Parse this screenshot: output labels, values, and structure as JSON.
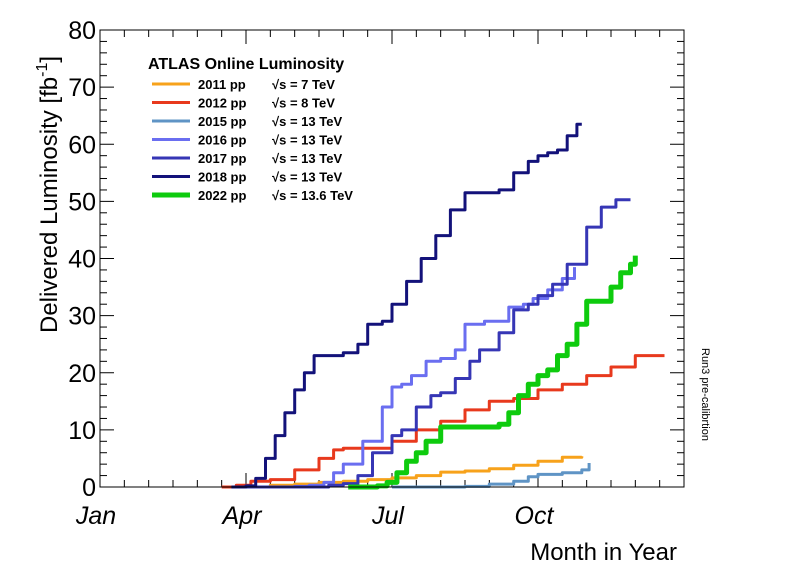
{
  "chart_data": {
    "type": "line",
    "ylabel": "Delivered Luminosity [fb",
    "ylabel_sup": "-1",
    "ylabel_close": "]",
    "xlabel": "Month in Year",
    "xlim": [
      1,
      13
    ],
    "ylim": [
      0,
      80
    ],
    "y_ticks": [
      0,
      10,
      20,
      30,
      40,
      50,
      60,
      70,
      80
    ],
    "x_ticks": [
      {
        "label": "Jan",
        "value": 1
      },
      {
        "label": "Apr",
        "value": 4
      },
      {
        "label": "Jul",
        "value": 7
      },
      {
        "label": "Oct",
        "value": 10
      }
    ],
    "legend_title": "ATLAS Online Luminosity",
    "side_note": "Run3 pre-calibrtion",
    "series": [
      {
        "name": "2011 pp",
        "energy": "√s = 7 TeV",
        "color": "#f7a21b",
        "x": [
          3.75,
          4.5,
          5.0,
          5.5,
          6.0,
          6.5,
          7.0,
          7.5,
          8.0,
          8.5,
          9.0,
          9.5,
          10.0,
          10.5,
          10.9
        ],
        "y": [
          0,
          0.3,
          0.5,
          0.8,
          1.0,
          1.3,
          1.6,
          2.0,
          2.6,
          2.8,
          3.2,
          3.8,
          4.5,
          5.2,
          5.4
        ]
      },
      {
        "name": "2012 pp",
        "energy": "√s = 8 TeV",
        "color": "#e8391d",
        "x": [
          3.5,
          3.8,
          4.1,
          4.5,
          5.0,
          5.5,
          5.8,
          6.0,
          6.5,
          7.0,
          7.5,
          8.0,
          8.5,
          9.0,
          9.5,
          10.0,
          10.5,
          11.0,
          11.5,
          12.0,
          12.6
        ],
        "y": [
          0,
          0.3,
          1.0,
          1.3,
          3.0,
          5.0,
          6.5,
          6.8,
          6.8,
          8.0,
          10.0,
          11.5,
          13.5,
          15.0,
          15.5,
          17.0,
          18.0,
          19.5,
          21.0,
          23.0,
          23.0
        ]
      },
      {
        "name": "2015 pp",
        "energy": "√s = 13 TeV",
        "color": "#5f94c5",
        "x": [
          7.0,
          8.0,
          8.5,
          9.0,
          9.5,
          9.8,
          10.0,
          10.5,
          10.9,
          11.05
        ],
        "y": [
          0,
          0,
          0.1,
          0.5,
          1.0,
          1.8,
          2.2,
          2.5,
          3.0,
          4.2
        ]
      },
      {
        "name": "2016 pp",
        "energy": "√s = 13 TeV",
        "color": "#6a6ef0",
        "x": [
          4.5,
          5.0,
          5.3,
          5.6,
          5.8,
          6.0,
          6.4,
          6.8,
          7.0,
          7.2,
          7.4,
          7.7,
          8.0,
          8.3,
          8.5,
          8.9,
          9.1,
          9.4,
          9.7,
          9.9,
          10.2,
          10.5,
          10.75
        ],
        "y": [
          0,
          0.1,
          0.3,
          0.8,
          2.5,
          4.0,
          8.0,
          14.0,
          17.5,
          18.0,
          19.5,
          22.0,
          22.5,
          24.0,
          28.5,
          29.0,
          29.0,
          31.5,
          32.0,
          33.0,
          34.5,
          36.5,
          38.5
        ]
      },
      {
        "name": "2017 pp",
        "energy": "√s = 13 TeV",
        "color": "#3636b5",
        "x": [
          4.0,
          5.0,
          5.7,
          6.0,
          6.3,
          6.6,
          7.0,
          7.2,
          7.5,
          7.8,
          8.0,
          8.3,
          8.6,
          8.8,
          9.0,
          9.2,
          9.5,
          9.8,
          10.0,
          10.3,
          10.6,
          11.0,
          11.3,
          11.6,
          11.9
        ],
        "y": [
          0,
          0,
          0.3,
          0.6,
          2.0,
          6.0,
          9.0,
          10.0,
          14.0,
          16.0,
          16.5,
          19.0,
          22.0,
          24.0,
          24.0,
          27.0,
          31.0,
          32.0,
          33.5,
          35.5,
          39.0,
          45.5,
          49.0,
          50.3,
          50.3
        ]
      },
      {
        "name": "2018 pp",
        "energy": "√s = 13 TeV",
        "color": "#13127a",
        "x": [
          3.7,
          4.0,
          4.2,
          4.4,
          4.6,
          4.8,
          5.0,
          5.2,
          5.4,
          5.6,
          6.0,
          6.3,
          6.5,
          6.8,
          7.0,
          7.3,
          7.6,
          7.9,
          8.2,
          8.5,
          8.7,
          9.0,
          9.2,
          9.5,
          9.8,
          10.0,
          10.2,
          10.4,
          10.6,
          10.8,
          10.9
        ],
        "y": [
          0,
          0.2,
          1.5,
          5.0,
          9.0,
          13.0,
          17.0,
          20.0,
          23.0,
          23.0,
          23.5,
          25.0,
          28.5,
          29.0,
          32.0,
          36.0,
          40.0,
          44.0,
          48.5,
          51.5,
          51.5,
          51.5,
          52.0,
          55.0,
          57.0,
          58.0,
          58.5,
          59.0,
          61.5,
          63.5,
          63.5
        ]
      },
      {
        "name": "2022 pp",
        "energy": "√s = 13.6 TeV",
        "color": "#0ecb0e",
        "thick": true,
        "x": [
          6.1,
          6.7,
          6.9,
          7.1,
          7.3,
          7.5,
          7.7,
          8.0,
          8.3,
          8.8,
          9.0,
          9.2,
          9.4,
          9.6,
          9.8,
          10.0,
          10.2,
          10.4,
          10.6,
          10.8,
          11.0,
          11.3,
          11.5,
          11.7,
          11.9,
          12.0
        ],
        "y": [
          0,
          0.2,
          0.8,
          2.5,
          4.5,
          6.0,
          8.0,
          10.5,
          10.5,
          10.5,
          10.5,
          11.0,
          13.0,
          16.0,
          18.0,
          19.5,
          20.5,
          23.0,
          25.0,
          28.5,
          32.5,
          32.5,
          35.0,
          37.5,
          39.0,
          40.5
        ]
      }
    ]
  }
}
